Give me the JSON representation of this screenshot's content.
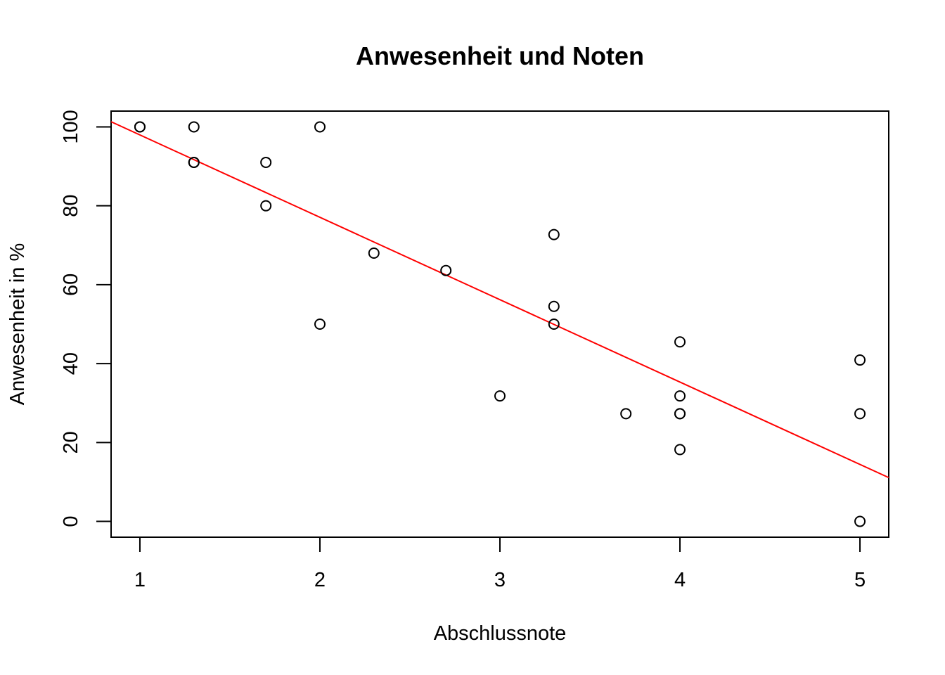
{
  "chart_data": {
    "type": "scatter",
    "title": "Anwesenheit und Noten",
    "xlabel": "Abschlussnote",
    "ylabel": "Anwesenheit in %",
    "xlim": [
      0.84,
      5.16
    ],
    "ylim": [
      -4,
      104
    ],
    "xticks": [
      1,
      2,
      3,
      4,
      5
    ],
    "yticks": [
      0,
      20,
      40,
      60,
      80,
      100
    ],
    "xtick_labels": [
      "1",
      "2",
      "3",
      "4",
      "5"
    ],
    "ytick_labels": [
      "0",
      "20",
      "40",
      "60",
      "80",
      "100"
    ],
    "grid": false,
    "legend": "none",
    "points": {
      "x": [
        1.0,
        1.0,
        1.3,
        1.3,
        1.3,
        1.7,
        1.7,
        2.0,
        2.0,
        2.3,
        2.7,
        3.0,
        3.3,
        3.3,
        3.3,
        3.7,
        4.0,
        4.0,
        4.0,
        4.0,
        4.0,
        5.0,
        5.0,
        5.0
      ],
      "y": [
        100,
        100,
        100,
        91,
        91,
        91,
        80,
        100,
        50,
        68,
        63.6,
        31.8,
        72.7,
        54.5,
        50,
        27.3,
        45.5,
        31.8,
        27.3,
        27.3,
        18.2,
        40.9,
        27.3,
        0
      ]
    },
    "regression_line": {
      "x": [
        0.84,
        5.16
      ],
      "y": [
        101.3,
        11.1
      ],
      "color": "#ff0000"
    },
    "point_color": "#000000"
  }
}
